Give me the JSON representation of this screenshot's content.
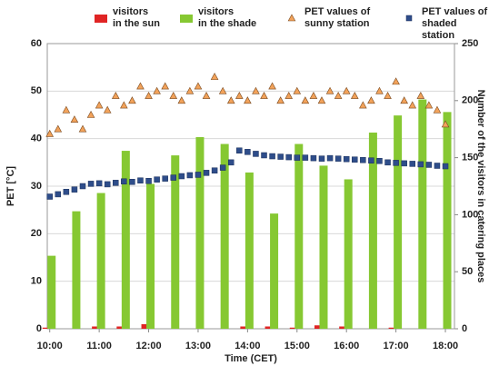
{
  "chart_data": {
    "type": "combo",
    "xlabel": "Time (CET)",
    "ylabel": "PET [°C]",
    "y2label": "Number of the visitors in catering places",
    "xlim": [
      597,
      1091
    ],
    "xticks": [
      {
        "value": 600,
        "label": "10:00"
      },
      {
        "value": 660,
        "label": "11:00"
      },
      {
        "value": 720,
        "label": "12:00"
      },
      {
        "value": 780,
        "label": "13:00"
      },
      {
        "value": 840,
        "label": "14:00"
      },
      {
        "value": 900,
        "label": "15:00"
      },
      {
        "value": 960,
        "label": "16:00"
      },
      {
        "value": 1020,
        "label": "17:00"
      },
      {
        "value": 1080,
        "label": "18:00"
      }
    ],
    "ylim": [
      0,
      60
    ],
    "yticks": [
      0,
      10,
      20,
      30,
      40,
      50,
      60
    ],
    "y2lim": [
      0,
      250
    ],
    "y2ticks": [
      0,
      50,
      100,
      150,
      200,
      250
    ],
    "grid": true,
    "series": [
      {
        "name": "visitors\nin the sun",
        "type": "bar",
        "axis": "y2",
        "color": "#e02424",
        "x": [
          600,
          630,
          660,
          690,
          720,
          750,
          780,
          810,
          840,
          870,
          900,
          930,
          960,
          990,
          1020,
          1050,
          1080
        ],
        "values": [
          1,
          0,
          2,
          2,
          4,
          0,
          0,
          0,
          2,
          2,
          1,
          3,
          2,
          0,
          1,
          0,
          0
        ]
      },
      {
        "name": "visitors\nin the shade",
        "type": "bar",
        "axis": "y2",
        "color": "#86c832",
        "x": [
          600,
          630,
          660,
          690,
          720,
          750,
          780,
          810,
          840,
          870,
          900,
          930,
          960,
          990,
          1020,
          1050,
          1080
        ],
        "values": [
          64,
          103,
          119,
          156,
          127,
          152,
          168,
          162,
          137,
          101,
          162,
          143,
          131,
          172,
          187,
          201,
          190
        ]
      },
      {
        "name": "PET values of\nsunny station",
        "type": "scatter",
        "marker": "triangle",
        "color": "#f2a25a",
        "x": [
          600,
          610,
          620,
          630,
          640,
          650,
          660,
          670,
          680,
          690,
          700,
          710,
          720,
          730,
          740,
          750,
          760,
          770,
          780,
          790,
          800,
          810,
          820,
          830,
          840,
          850,
          860,
          870,
          880,
          890,
          900,
          910,
          920,
          930,
          940,
          950,
          960,
          970,
          980,
          990,
          1000,
          1010,
          1020,
          1030,
          1040,
          1050,
          1060,
          1070,
          1080
        ],
        "values": [
          41,
          42,
          46,
          44,
          42,
          45,
          47,
          46,
          49,
          47,
          48,
          51,
          49,
          50,
          51,
          49,
          48,
          50,
          51,
          49,
          53,
          50,
          48,
          49,
          48,
          50,
          49,
          51,
          48,
          49,
          50,
          48,
          49,
          48,
          50,
          49,
          50,
          49,
          47,
          48,
          50,
          49,
          52,
          48,
          47,
          49,
          47,
          46,
          43
        ]
      },
      {
        "name": "PET values of\nshaded station",
        "type": "scatter",
        "marker": "square",
        "color": "#2e4d8a",
        "x": [
          600,
          610,
          620,
          630,
          640,
          650,
          660,
          670,
          680,
          690,
          700,
          710,
          720,
          730,
          740,
          750,
          760,
          770,
          780,
          790,
          800,
          810,
          820,
          830,
          840,
          850,
          860,
          870,
          880,
          890,
          900,
          910,
          920,
          930,
          940,
          950,
          960,
          970,
          980,
          990,
          1000,
          1010,
          1020,
          1030,
          1040,
          1050,
          1060,
          1070,
          1080
        ],
        "values": [
          27.8,
          28.3,
          28.8,
          29.3,
          30,
          30.5,
          30.6,
          30.4,
          30.7,
          31,
          30.9,
          31.2,
          31.1,
          31.4,
          31.6,
          31.8,
          32.1,
          32.3,
          32.4,
          32.8,
          33.3,
          33.9,
          35,
          37.5,
          37.2,
          36.8,
          36.5,
          36.3,
          36.2,
          36.1,
          36,
          36,
          35.9,
          35.8,
          35.9,
          35.8,
          35.7,
          35.6,
          35.5,
          35.4,
          35.3,
          35,
          34.9,
          34.8,
          34.7,
          34.6,
          34.5,
          34.3,
          34.2
        ]
      }
    ]
  }
}
